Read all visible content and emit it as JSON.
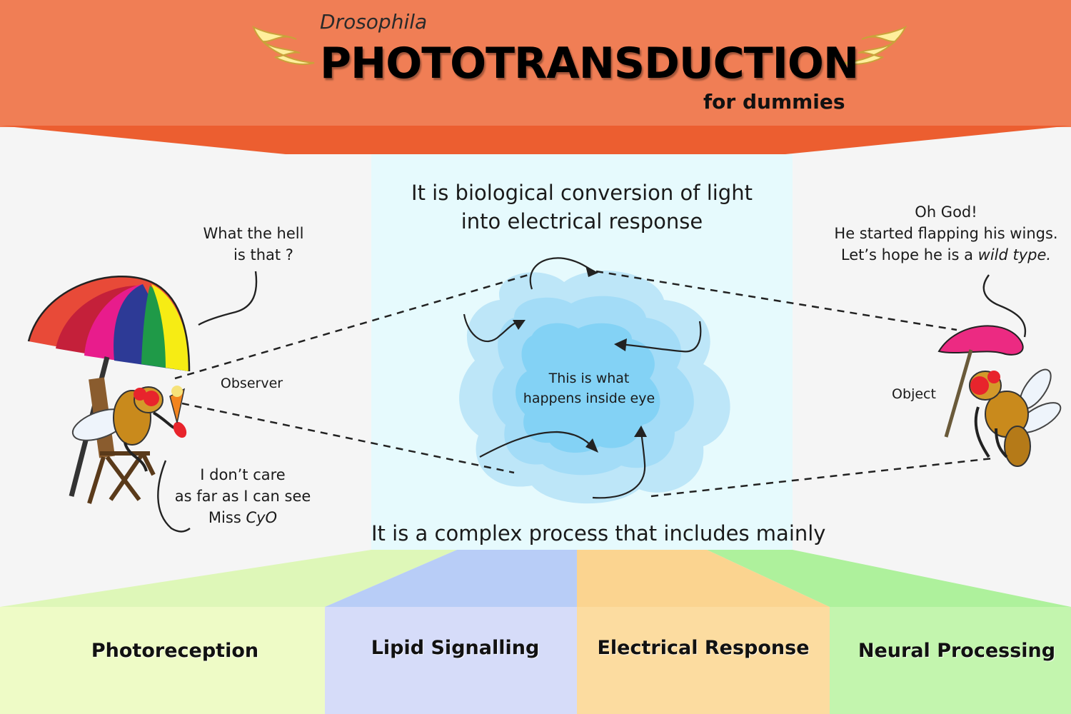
{
  "header": {
    "subtitle": "Drosophila",
    "title": "PHOTOTRANSDUCTION",
    "tagline": "for dummies"
  },
  "center": {
    "definition_line1": "It is biological conversion of light",
    "definition_line2": "into electrical response",
    "eye_label_line1": "This is what",
    "eye_label_line2": "happens inside eye",
    "process_intro": "It is a complex process that includes mainly"
  },
  "left": {
    "speech_top_line1": "What the hell",
    "speech_top_line2": "is that ?",
    "observer_label": "Observer",
    "speech_bottom_line1": "I don’t care",
    "speech_bottom_line2": "as far as I can see",
    "speech_bottom_line3_prefix": "Miss ",
    "speech_bottom_line3_italic": "CyO"
  },
  "right": {
    "speech_line1": "Oh God!",
    "speech_line2": "He started flapping his wings.",
    "speech_line3_prefix": "Let’s hope he is a ",
    "speech_line3_italic": "wild type.",
    "object_label": "Object"
  },
  "categories": [
    {
      "label": "Photoreception",
      "color": "#eefbc6"
    },
    {
      "label": "Lipid Signalling",
      "color": "#d6dcf9"
    },
    {
      "label": "Electrical Response",
      "color": "#fcdca0"
    },
    {
      "label": "Neural Processing",
      "color": "#c3f5ae"
    }
  ],
  "colors": {
    "header": "#f07e55",
    "header_dark": "#ec5e30",
    "center_panel": "#e6fafd",
    "cloud_outer": "#bde6f8",
    "cloud_inner": "#7fd0f4"
  },
  "icons": [
    "wing-icon",
    "umbrella-icon",
    "fly-icon",
    "chair-icon",
    "cloud-icon"
  ]
}
